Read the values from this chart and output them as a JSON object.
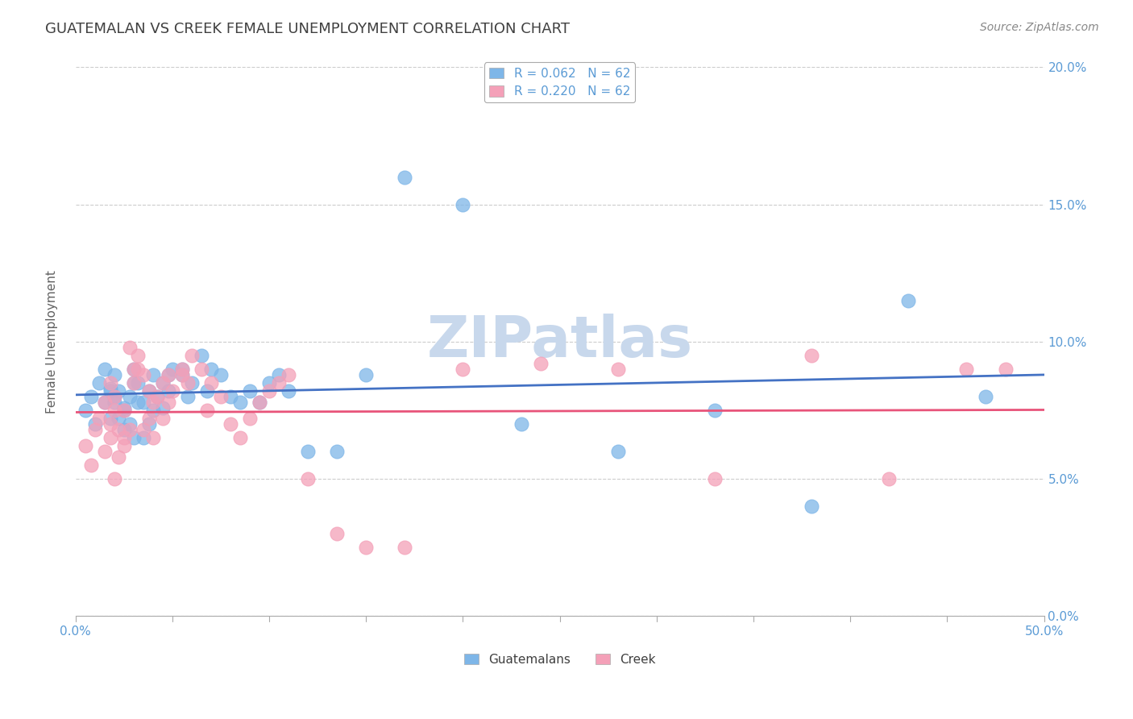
{
  "title": "GUATEMALAN VS CREEK FEMALE UNEMPLOYMENT CORRELATION CHART",
  "source": "Source: ZipAtlas.com",
  "ylabel": "Female Unemployment",
  "watermark": "ZIPatlas",
  "xlim": [
    0.0,
    0.5
  ],
  "ylim": [
    0.0,
    0.2
  ],
  "xticks": [
    0.0,
    0.05,
    0.1,
    0.15,
    0.2,
    0.25,
    0.3,
    0.35,
    0.4,
    0.45,
    0.5
  ],
  "xtick_labels_show": [
    "0.0%",
    "",
    "",
    "",
    "",
    "",
    "",
    "",
    "",
    "",
    "50.0%"
  ],
  "yticks": [
    0.0,
    0.05,
    0.1,
    0.15,
    0.2
  ],
  "ytick_labels": [
    "0.0%",
    "5.0%",
    "10.0%",
    "15.0%",
    "20.0%"
  ],
  "guatemalan_color": "#7EB6E8",
  "creek_color": "#F4A0B8",
  "guatemalan_trend_color": "#4472C4",
  "creek_trend_color": "#E8547A",
  "guatemalan_R": 0.062,
  "guatemalan_N": 62,
  "creek_R": 0.22,
  "creek_N": 62,
  "guatemalan_x": [
    0.005,
    0.008,
    0.01,
    0.012,
    0.015,
    0.018,
    0.02,
    0.022,
    0.025,
    0.015,
    0.018,
    0.02,
    0.025,
    0.028,
    0.03,
    0.032,
    0.03,
    0.028,
    0.025,
    0.022,
    0.02,
    0.018,
    0.03,
    0.032,
    0.035,
    0.038,
    0.04,
    0.038,
    0.035,
    0.04,
    0.042,
    0.045,
    0.048,
    0.05,
    0.048,
    0.045,
    0.055,
    0.058,
    0.06,
    0.055,
    0.065,
    0.07,
    0.075,
    0.068,
    0.08,
    0.085,
    0.09,
    0.095,
    0.1,
    0.105,
    0.11,
    0.12,
    0.135,
    0.15,
    0.17,
    0.2,
    0.23,
    0.28,
    0.33,
    0.38,
    0.43,
    0.47
  ],
  "guatemalan_y": [
    0.075,
    0.08,
    0.07,
    0.085,
    0.078,
    0.072,
    0.08,
    0.082,
    0.075,
    0.09,
    0.083,
    0.088,
    0.076,
    0.08,
    0.085,
    0.078,
    0.065,
    0.07,
    0.068,
    0.072,
    0.078,
    0.082,
    0.09,
    0.085,
    0.078,
    0.082,
    0.088,
    0.07,
    0.065,
    0.075,
    0.08,
    0.085,
    0.088,
    0.09,
    0.082,
    0.076,
    0.088,
    0.08,
    0.085,
    0.09,
    0.095,
    0.09,
    0.088,
    0.082,
    0.08,
    0.078,
    0.082,
    0.078,
    0.085,
    0.088,
    0.082,
    0.06,
    0.06,
    0.088,
    0.16,
    0.15,
    0.07,
    0.06,
    0.075,
    0.04,
    0.115,
    0.08
  ],
  "creek_x": [
    0.005,
    0.008,
    0.01,
    0.012,
    0.015,
    0.018,
    0.02,
    0.022,
    0.025,
    0.015,
    0.018,
    0.02,
    0.025,
    0.028,
    0.03,
    0.032,
    0.028,
    0.025,
    0.022,
    0.02,
    0.018,
    0.03,
    0.032,
    0.035,
    0.038,
    0.04,
    0.038,
    0.035,
    0.04,
    0.042,
    0.045,
    0.048,
    0.05,
    0.048,
    0.045,
    0.055,
    0.058,
    0.06,
    0.055,
    0.065,
    0.07,
    0.075,
    0.068,
    0.08,
    0.085,
    0.09,
    0.095,
    0.1,
    0.105,
    0.11,
    0.12,
    0.135,
    0.15,
    0.17,
    0.2,
    0.24,
    0.28,
    0.33,
    0.38,
    0.42,
    0.46,
    0.48
  ],
  "creek_y": [
    0.062,
    0.055,
    0.068,
    0.072,
    0.06,
    0.065,
    0.05,
    0.058,
    0.062,
    0.078,
    0.07,
    0.075,
    0.065,
    0.068,
    0.085,
    0.09,
    0.098,
    0.075,
    0.068,
    0.08,
    0.085,
    0.09,
    0.095,
    0.088,
    0.082,
    0.078,
    0.072,
    0.068,
    0.065,
    0.08,
    0.085,
    0.088,
    0.082,
    0.078,
    0.072,
    0.09,
    0.085,
    0.095,
    0.088,
    0.09,
    0.085,
    0.08,
    0.075,
    0.07,
    0.065,
    0.072,
    0.078,
    0.082,
    0.085,
    0.088,
    0.05,
    0.03,
    0.025,
    0.025,
    0.09,
    0.092,
    0.09,
    0.05,
    0.095,
    0.05,
    0.09,
    0.09
  ],
  "title_fontsize": 13,
  "axis_label_fontsize": 11,
  "tick_fontsize": 11,
  "legend_fontsize": 11,
  "source_fontsize": 10,
  "watermark_fontsize": 52,
  "watermark_color": "#C8D8EC",
  "background_color": "#FFFFFF",
  "grid_color": "#CCCCCC",
  "axis_color": "#AAAAAA",
  "tick_color_right": "#5B9BD5",
  "title_color": "#404040",
  "ylabel_color": "#606060"
}
